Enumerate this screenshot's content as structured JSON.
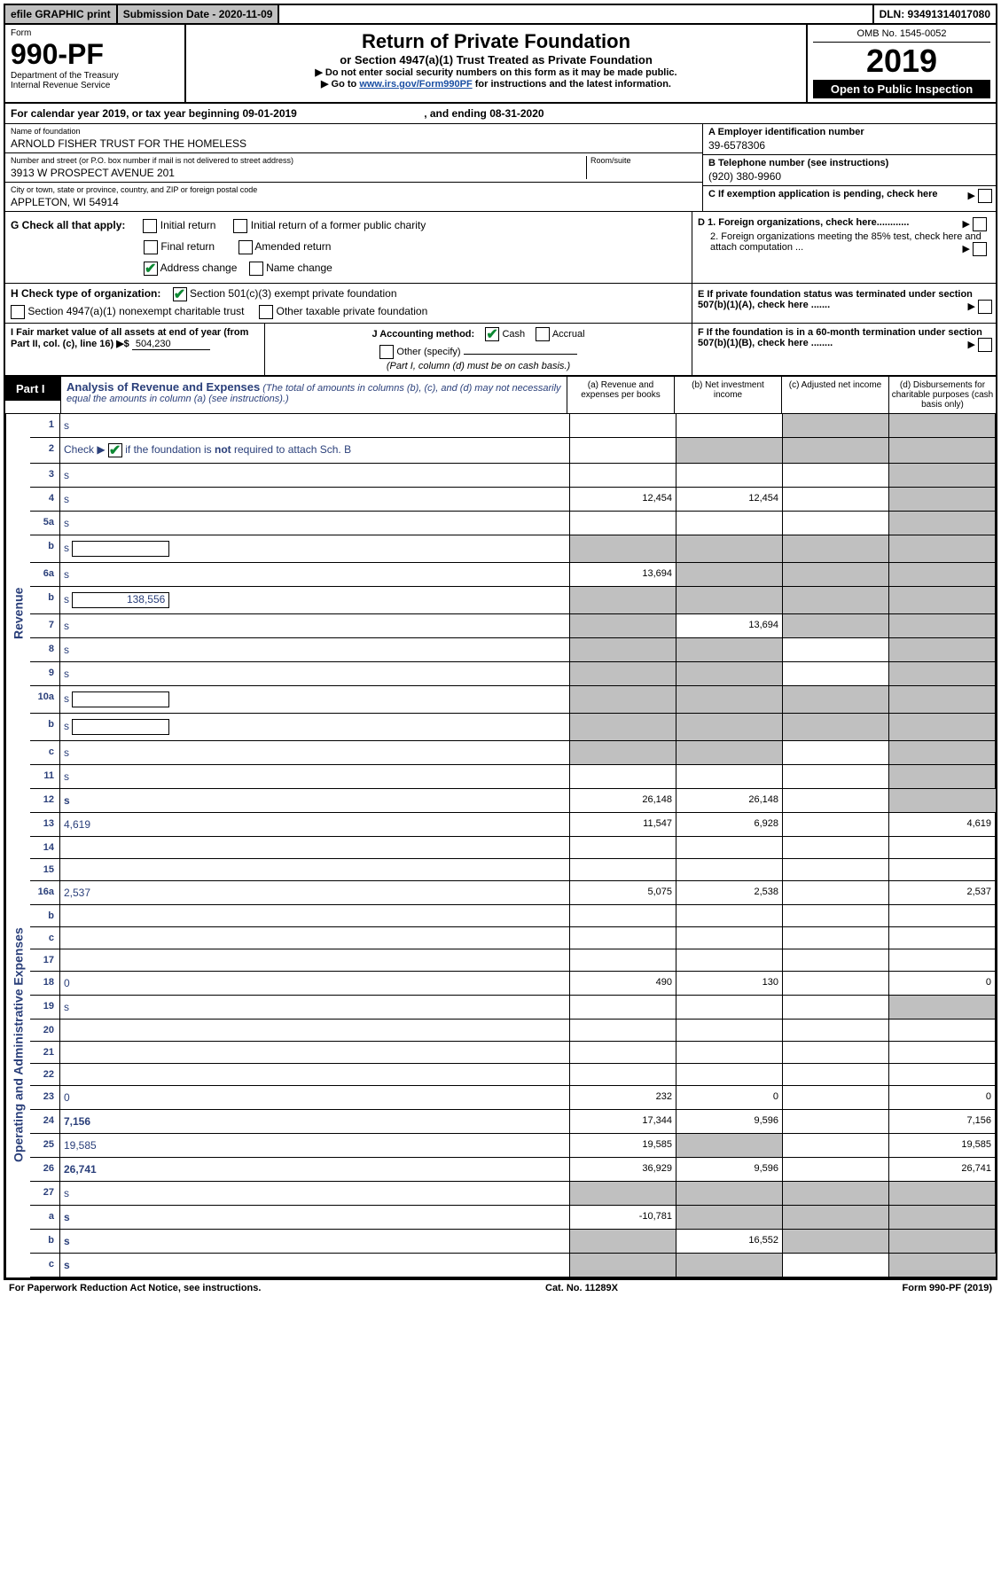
{
  "top_bar": {
    "efile": "efile GRAPHIC print",
    "submission": "Submission Date - 2020-11-09",
    "dln": "DLN: 93491314017080"
  },
  "header": {
    "form_label": "Form",
    "form_number": "990-PF",
    "dept1": "Department of the Treasury",
    "dept2": "Internal Revenue Service",
    "title": "Return of Private Foundation",
    "subtitle": "or Section 4947(a)(1) Trust Treated as Private Foundation",
    "instr1": "▶ Do not enter social security numbers on this form as it may be made public.",
    "instr2_pre": "▶ Go to ",
    "instr2_link": "www.irs.gov/Form990PF",
    "instr2_post": " for instructions and the latest information.",
    "omb": "OMB No. 1545-0052",
    "year": "2019",
    "open": "Open to Public Inspection"
  },
  "cal": {
    "text_pre": "For calendar year 2019, or tax year beginning ",
    "begin": "09-01-2019",
    "text_mid": ", and ending ",
    "end": "08-31-2020"
  },
  "info": {
    "name_label": "Name of foundation",
    "name": "ARNOLD FISHER TRUST FOR THE HOMELESS",
    "addr_label": "Number and street (or P.O. box number if mail is not delivered to street address)",
    "addr": "3913 W PROSPECT AVENUE 201",
    "room_label": "Room/suite",
    "city_label": "City or town, state or province, country, and ZIP or foreign postal code",
    "city": "APPLETON, WI  54914",
    "a_label": "A Employer identification number",
    "a_val": "39-6578306",
    "b_label": "B Telephone number (see instructions)",
    "b_val": "(920) 380-9960",
    "c_label": "C If exemption application is pending, check here",
    "d1": "D 1. Foreign organizations, check here............",
    "d2": "2. Foreign organizations meeting the 85% test, check here and attach computation ...",
    "e_label": "E  If private foundation status was terminated under section 507(b)(1)(A), check here .......",
    "f_label": "F  If the foundation is in a 60-month termination under section 507(b)(1)(B), check here ........"
  },
  "g": {
    "label": "G Check all that apply:",
    "initial": "Initial return",
    "initial_former": "Initial return of a former public charity",
    "final": "Final return",
    "amended": "Amended return",
    "addr_change": "Address change",
    "name_change": "Name change"
  },
  "h": {
    "label": "H Check type of organization:",
    "opt1": "Section 501(c)(3) exempt private foundation",
    "opt2": "Section 4947(a)(1) nonexempt charitable trust",
    "opt3": "Other taxable private foundation"
  },
  "i": {
    "label": "I Fair market value of all assets at end of year (from Part II, col. (c), line 16) ▶$",
    "value": "504,230"
  },
  "j": {
    "label": "J Accounting method:",
    "cash": "Cash",
    "accrual": "Accrual",
    "other": "Other (specify)",
    "note": "(Part I, column (d) must be on cash basis.)"
  },
  "part1": {
    "badge": "Part I",
    "title": "Analysis of Revenue and Expenses",
    "note": " (The total of amounts in columns (b), (c), and (d) may not necessarily equal the amounts in column (a) (see instructions).)",
    "col_a": "(a) Revenue and expenses per books",
    "col_b": "(b) Net investment income",
    "col_c": "(c) Adjusted net income",
    "col_d": "(d) Disbursements for charitable purposes (cash basis only)"
  },
  "sides": {
    "revenue": "Revenue",
    "expenses": "Operating and Administrative Expenses"
  },
  "rows": [
    {
      "n": "1",
      "d": "s",
      "a": "",
      "b": "",
      "c": "s"
    },
    {
      "n": "2",
      "d": "s",
      "a": "",
      "b": "s",
      "c": "s",
      "desc_html": true
    },
    {
      "n": "3",
      "d": "s",
      "a": "",
      "b": "",
      "c": ""
    },
    {
      "n": "4",
      "d": "s",
      "a": "12,454",
      "b": "12,454",
      "c": ""
    },
    {
      "n": "5a",
      "d": "s",
      "a": "",
      "b": "",
      "c": ""
    },
    {
      "n": "b",
      "d": "s",
      "a": "s",
      "b": "s",
      "c": "s",
      "box": true
    },
    {
      "n": "6a",
      "d": "s",
      "a": "13,694",
      "b": "s",
      "c": "s"
    },
    {
      "n": "b",
      "d": "s",
      "a": "s",
      "b": "s",
      "c": "s",
      "box": true,
      "boxval": "138,556"
    },
    {
      "n": "7",
      "d": "s",
      "a": "s",
      "b": "13,694",
      "c": "s"
    },
    {
      "n": "8",
      "d": "s",
      "a": "s",
      "b": "s",
      "c": ""
    },
    {
      "n": "9",
      "d": "s",
      "a": "s",
      "b": "s",
      "c": ""
    },
    {
      "n": "10a",
      "d": "s",
      "a": "s",
      "b": "s",
      "c": "s",
      "box": true
    },
    {
      "n": "b",
      "d": "s",
      "a": "s",
      "b": "s",
      "c": "s",
      "box": true
    },
    {
      "n": "c",
      "d": "s",
      "a": "s",
      "b": "s",
      "c": ""
    },
    {
      "n": "11",
      "d": "s",
      "a": "",
      "b": "",
      "c": ""
    },
    {
      "n": "12",
      "d": "s",
      "a": "26,148",
      "b": "26,148",
      "c": "",
      "bold": true
    }
  ],
  "exp_rows": [
    {
      "n": "13",
      "d": "4,619",
      "a": "11,547",
      "b": "6,928",
      "c": ""
    },
    {
      "n": "14",
      "d": "",
      "a": "",
      "b": "",
      "c": ""
    },
    {
      "n": "15",
      "d": "",
      "a": "",
      "b": "",
      "c": ""
    },
    {
      "n": "16a",
      "d": "2,537",
      "a": "5,075",
      "b": "2,538",
      "c": ""
    },
    {
      "n": "b",
      "d": "",
      "a": "",
      "b": "",
      "c": ""
    },
    {
      "n": "c",
      "d": "",
      "a": "",
      "b": "",
      "c": ""
    },
    {
      "n": "17",
      "d": "",
      "a": "",
      "b": "",
      "c": ""
    },
    {
      "n": "18",
      "d": "0",
      "a": "490",
      "b": "130",
      "c": ""
    },
    {
      "n": "19",
      "d": "s",
      "a": "",
      "b": "",
      "c": ""
    },
    {
      "n": "20",
      "d": "",
      "a": "",
      "b": "",
      "c": ""
    },
    {
      "n": "21",
      "d": "",
      "a": "",
      "b": "",
      "c": ""
    },
    {
      "n": "22",
      "d": "",
      "a": "",
      "b": "",
      "c": ""
    },
    {
      "n": "23",
      "d": "0",
      "a": "232",
      "b": "0",
      "c": ""
    },
    {
      "n": "24",
      "d": "7,156",
      "a": "17,344",
      "b": "9,596",
      "c": "",
      "bold": true
    },
    {
      "n": "25",
      "d": "19,585",
      "a": "19,585",
      "b": "s",
      "c": ""
    },
    {
      "n": "26",
      "d": "26,741",
      "a": "36,929",
      "b": "9,596",
      "c": "",
      "bold": true
    },
    {
      "n": "27",
      "d": "s",
      "a": "s",
      "b": "s",
      "c": "s"
    },
    {
      "n": "a",
      "d": "s",
      "a": "-10,781",
      "b": "s",
      "c": "s",
      "bold": true
    },
    {
      "n": "b",
      "d": "s",
      "a": "s",
      "b": "16,552",
      "c": "s",
      "bold": true
    },
    {
      "n": "c",
      "d": "s",
      "a": "s",
      "b": "s",
      "c": "",
      "bold": true
    }
  ],
  "footer": {
    "left": "For Paperwork Reduction Act Notice, see instructions.",
    "mid": "Cat. No. 11289X",
    "right": "Form 990-PF (2019)"
  }
}
